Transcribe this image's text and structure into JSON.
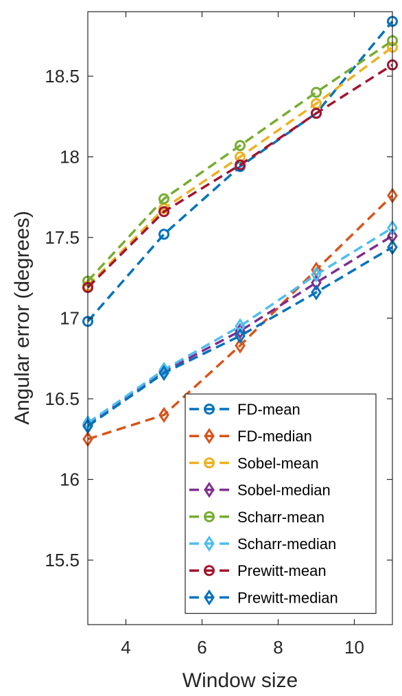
{
  "chart_data": {
    "type": "line",
    "xlabel": "Window size",
    "ylabel": "Angular error (degrees)",
    "xlim": [
      3,
      11
    ],
    "ylim": [
      15.1,
      18.9
    ],
    "xticks": [
      4,
      6,
      8,
      10
    ],
    "yticks": [
      15.5,
      16,
      16.5,
      17,
      17.5,
      18,
      18.5
    ],
    "x": [
      3,
      5,
      7,
      9,
      11
    ],
    "grid": false,
    "legend_position": "bottom-right",
    "series": [
      {
        "name": "FD-mean",
        "marker": "circle",
        "color": "#0072BD",
        "values": [
          16.98,
          17.52,
          17.94,
          18.27,
          18.84
        ]
      },
      {
        "name": "FD-median",
        "marker": "diamond",
        "color": "#D95319",
        "values": [
          16.25,
          16.4,
          16.83,
          17.3,
          17.76
        ]
      },
      {
        "name": "Sobel-mean",
        "marker": "circle",
        "color": "#EDB120",
        "values": [
          17.2,
          17.68,
          18.0,
          18.33,
          18.68
        ]
      },
      {
        "name": "Sobel-median",
        "marker": "diamond",
        "color": "#7E2F8E",
        "values": [
          16.34,
          16.67,
          16.92,
          17.22,
          17.51
        ]
      },
      {
        "name": "Scharr-mean",
        "marker": "circle",
        "color": "#77AC30",
        "values": [
          17.23,
          17.74,
          18.07,
          18.4,
          18.72
        ]
      },
      {
        "name": "Scharr-median",
        "marker": "diamond",
        "color": "#4DBEEE",
        "values": [
          16.35,
          16.68,
          16.95,
          17.27,
          17.56
        ]
      },
      {
        "name": "Prewitt-mean",
        "marker": "circle",
        "color": "#A2142F",
        "values": [
          17.19,
          17.66,
          17.95,
          18.27,
          18.57
        ]
      },
      {
        "name": "Prewitt-median",
        "marker": "diamond",
        "color": "#0072BD",
        "values": [
          16.33,
          16.66,
          16.89,
          17.16,
          17.44
        ]
      }
    ]
  }
}
